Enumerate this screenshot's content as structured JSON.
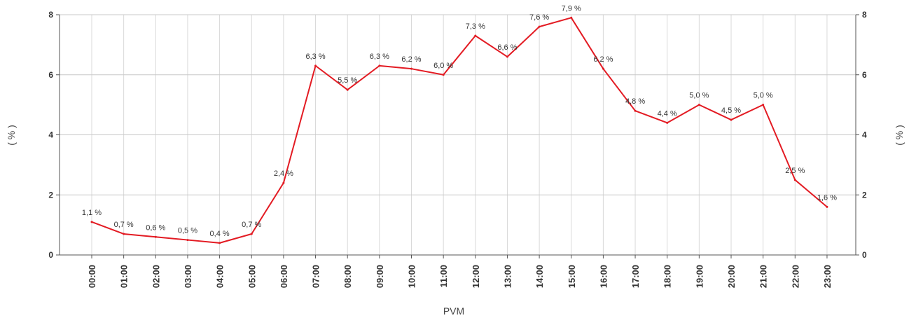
{
  "chart_data": {
    "type": "line",
    "xlabel": "PVM",
    "ylabel_left": "( % )",
    "ylabel_right": "( % )",
    "ylim": [
      0,
      8
    ],
    "yticks": [
      "0",
      "2",
      "4",
      "6",
      "8"
    ],
    "grid": true,
    "categories": [
      "00:00",
      "01:00",
      "02:00",
      "03:00",
      "04:00",
      "05:00",
      "06:00",
      "07:00",
      "08:00",
      "09:00",
      "10:00",
      "11:00",
      "12:00",
      "13:00",
      "14:00",
      "15:00",
      "16:00",
      "17:00",
      "18:00",
      "19:00",
      "20:00",
      "21:00",
      "22:00",
      "23:00"
    ],
    "series": [
      {
        "color": "#e31b23",
        "values": [
          1.1,
          0.7,
          0.6,
          0.5,
          0.4,
          0.7,
          2.4,
          6.3,
          5.5,
          6.3,
          6.2,
          6.0,
          7.3,
          6.6,
          7.6,
          7.9,
          6.2,
          4.8,
          4.4,
          5.0,
          4.5,
          5.0,
          2.5,
          1.6
        ],
        "labels": [
          "1,1 %",
          "0,7 %",
          "0,6 %",
          "0,5 %",
          "0,4 %",
          "0,7 %",
          "2,4 %",
          "6,3 %",
          "5,5 %",
          "6,3 %",
          "6,2 %",
          "6,0 %",
          "7,3 %",
          "6,6 %",
          "7,6 %",
          "7,9 %",
          "6,2 %",
          "4,8 %",
          "4,4 %",
          "5,0 %",
          "4,5 %",
          "5,0 %",
          "2,5 %",
          "1,6 %"
        ]
      }
    ]
  }
}
